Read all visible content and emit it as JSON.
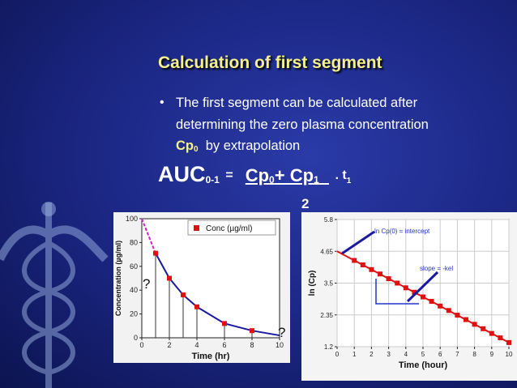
{
  "title": "Calculation of first segment",
  "bullet": {
    "text": "The first segment can be calculated after determining the zero plasma concentration",
    "symbol": "Cp",
    "subscript": "0",
    "suffix": "by extrapolation"
  },
  "formula": {
    "lhs": "AUC",
    "lhs_sub": "0-1",
    "equals": "=",
    "term1": "Cp",
    "term1_sub": "0",
    "term2": "+ Cp",
    "term2_sub": "1",
    "times": ". t",
    "times_sub": "1",
    "denominator": "2"
  },
  "chart_data": [
    {
      "type": "line",
      "xlabel": "Time (hr)",
      "ylabel": "Concentration (µg/ml)",
      "xlim": [
        0,
        10
      ],
      "xticks": [
        0,
        2,
        4,
        6,
        8,
        10
      ],
      "ylim": [
        0,
        100
      ],
      "yticks": [
        0,
        20,
        40,
        60,
        80,
        100
      ],
      "grid": false,
      "drops": true,
      "legend": "top-right",
      "series": [
        {
          "name": "Conc (µg/ml)",
          "color": "#e01010",
          "x": [
            1,
            2,
            3,
            4,
            6,
            8
          ],
          "values": [
            71,
            50,
            36,
            26,
            12,
            6
          ]
        }
      ],
      "lines": [
        {
          "color": "#d020d0",
          "dash": true,
          "x": [
            0,
            1
          ],
          "values": [
            100,
            71
          ]
        },
        {
          "color": "#1a1aa0",
          "dash": false,
          "x": [
            1,
            2,
            3,
            4,
            6,
            8,
            10
          ],
          "values": [
            71,
            50,
            36,
            26,
            12,
            6,
            2
          ]
        }
      ],
      "annotations": [
        "?",
        "?"
      ]
    },
    {
      "type": "line",
      "xlabel": "Time (hour)",
      "ylabel": "ln (Cp)",
      "xlim": [
        0,
        10
      ],
      "xticks": [
        0,
        1,
        2,
        3,
        4,
        5,
        6,
        7,
        8,
        9,
        10
      ],
      "ylim": [
        1.2,
        5.8
      ],
      "yticks": [
        1.2,
        2.35,
        3.5,
        4.65,
        5.8
      ],
      "grid": true,
      "drops": false,
      "series": [
        {
          "color": "#e01010",
          "x": [
            1,
            1.5,
            2,
            2.5,
            3,
            3.5,
            4,
            4.5,
            5,
            5.5,
            6,
            6.5,
            7,
            7.5,
            8,
            8.5,
            9,
            9.5,
            10
          ],
          "values": [
            4.32,
            4.16,
            3.99,
            3.83,
            3.66,
            3.5,
            3.33,
            3.17,
            3.0,
            2.84,
            2.67,
            2.51,
            2.34,
            2.18,
            2.01,
            1.85,
            1.68,
            1.52,
            1.35
          ]
        }
      ],
      "lines": [
        {
          "color": "#e01010",
          "dash": false,
          "x": [
            0,
            10
          ],
          "values": [
            4.65,
            1.35
          ]
        }
      ],
      "annotations": [
        "ln Cp(0) = intercept",
        "slope = -kel"
      ]
    }
  ]
}
